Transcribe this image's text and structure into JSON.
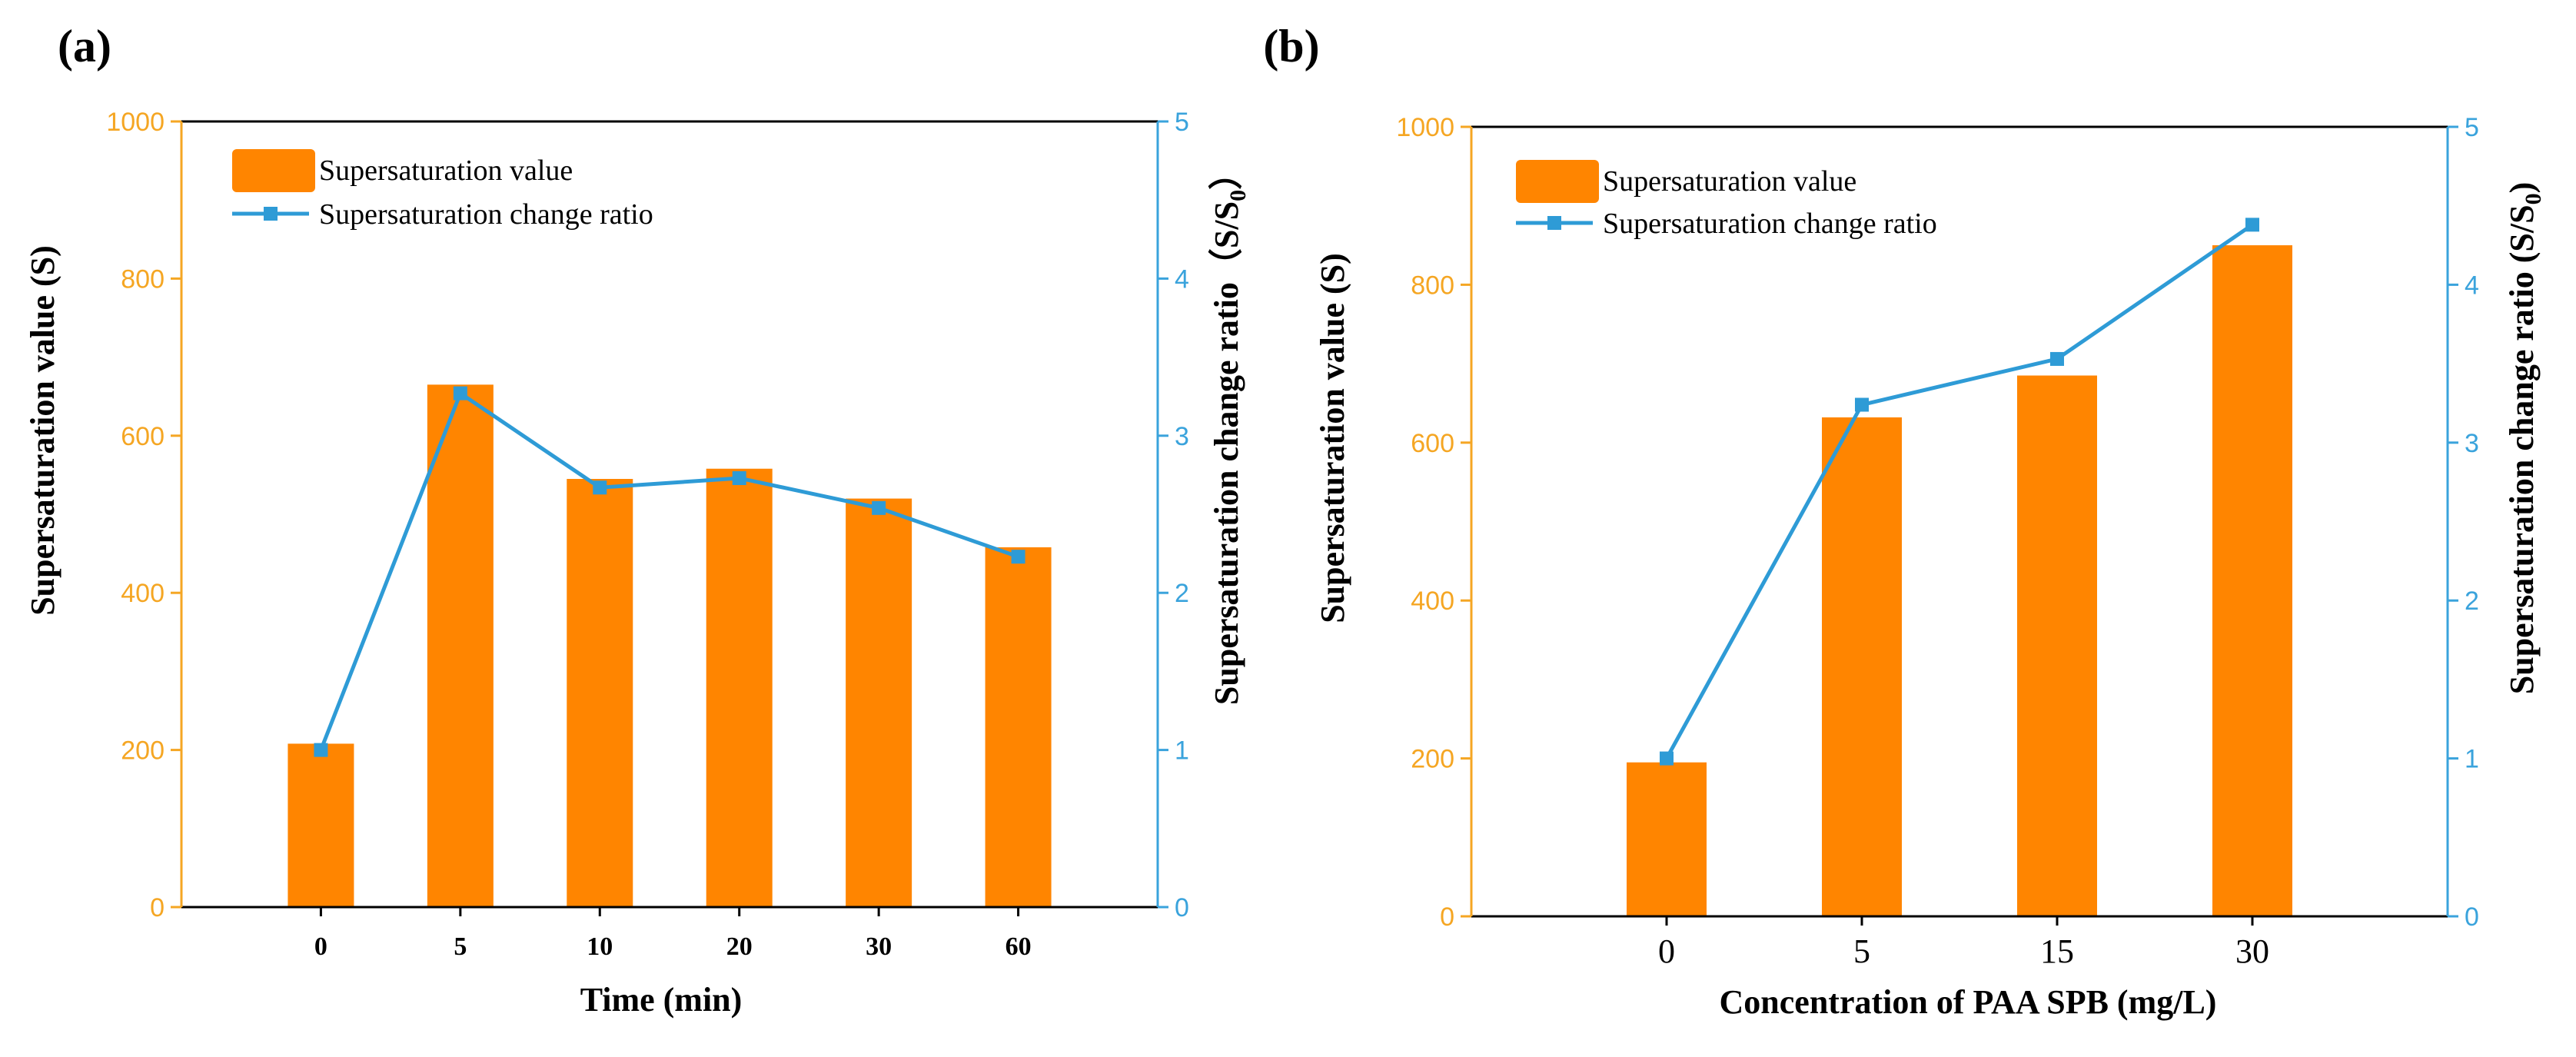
{
  "colors": {
    "bar": "#FF8500",
    "line": "#2E9BD6",
    "left_axis": "#F5A623",
    "right_axis": "#3AA3DC",
    "frame": "#000000"
  },
  "chart_data": [
    {
      "panel": "(a)",
      "type": "bar",
      "categories": [
        "0",
        "5",
        "10",
        "20",
        "30",
        "60"
      ],
      "series": [
        {
          "name": "Supersaturation  value",
          "type": "bar",
          "axis": "left",
          "values": [
            208,
            665,
            545,
            558,
            520,
            458
          ]
        },
        {
          "name": "Supersaturation change ratio",
          "type": "line",
          "axis": "right",
          "values": [
            1.0,
            3.27,
            2.67,
            2.73,
            2.54,
            2.23
          ]
        }
      ],
      "xlabel": "Time (min)",
      "ylabel": "Supersaturation  value (S)",
      "y2label": "Supersaturation change ratio（S/S",
      "y2label_sub": "0",
      "y2label_end": "）",
      "ylim": [
        0,
        1000
      ],
      "y_ticks": [
        0,
        200,
        400,
        600,
        800,
        1000
      ],
      "y2lim": [
        0,
        5
      ],
      "y2_ticks": [
        0,
        1,
        2,
        3,
        4,
        5
      ],
      "legend": "top-left"
    },
    {
      "panel": "(b)",
      "type": "bar",
      "categories": [
        "0",
        "5",
        "15",
        "30"
      ],
      "series": [
        {
          "name": "Supersaturation  value",
          "type": "bar",
          "axis": "left",
          "values": [
            195,
            632,
            685,
            850
          ]
        },
        {
          "name": "Supersaturation change ratio",
          "type": "line",
          "axis": "right",
          "values": [
            1.0,
            3.24,
            3.53,
            4.38
          ]
        }
      ],
      "xlabel": "Concentration of  PAA SPB (mg/L)",
      "ylabel": "Supersaturation  value (S)",
      "y2label": "Supersaturation change ratio (S/S",
      "y2label_sub": "0",
      "y2label_end": ")",
      "ylim": [
        0,
        1000
      ],
      "y_ticks": [
        0,
        200,
        400,
        600,
        800,
        1000
      ],
      "y2lim": [
        0,
        5
      ],
      "y2_ticks": [
        0,
        1,
        2,
        3,
        4,
        5
      ],
      "legend": "top-left"
    }
  ]
}
